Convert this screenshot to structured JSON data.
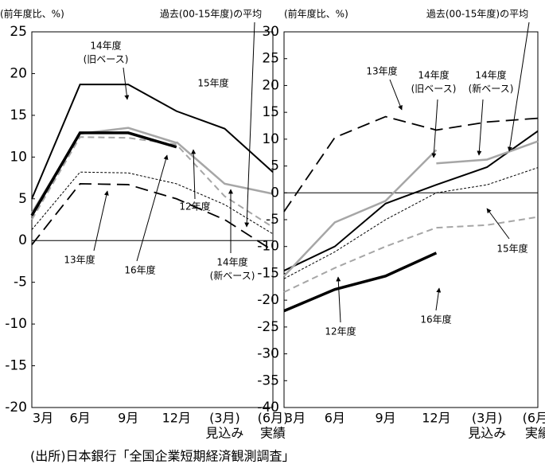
{
  "chart_data": [
    {
      "type": "line",
      "axis_label": "(前年度比、%)",
      "categories": [
        [
          "3月"
        ],
        [
          "6月"
        ],
        [
          "9月"
        ],
        [
          "12月"
        ],
        [
          "(3月)",
          "見込み"
        ],
        [
          "(6月)",
          "実績"
        ]
      ],
      "ylim": [
        -20,
        25
      ],
      "yticks": [
        -20,
        -15,
        -10,
        -5,
        0,
        5,
        10,
        15,
        20,
        25
      ],
      "series": [
        {
          "name": "15年度",
          "color": "#000000",
          "width": 2,
          "dash": "solid",
          "values": [
            5.0,
            18.7,
            18.7,
            15.5,
            13.4,
            8.2
          ]
        },
        {
          "name": "14年度(旧ベース)",
          "color": "#a6a6a6",
          "width": 2.5,
          "dash": "solid",
          "values": [
            3.3,
            12.8,
            13.5,
            11.7,
            null,
            null
          ]
        },
        {
          "name": "14年度(新ベース)",
          "color": "#a6a6a6",
          "width": 2.5,
          "dash": "solid",
          "values": [
            null,
            null,
            null,
            11.8,
            6.8,
            5.6
          ]
        },
        {
          "name": "12年度",
          "color": "#a6a6a6",
          "width": 2,
          "dash": "dash",
          "values": [
            2.5,
            12.4,
            12.3,
            11.5,
            5.3,
            1.6
          ]
        },
        {
          "name": "16年度",
          "color": "#000000",
          "width": 3.5,
          "dash": "solid",
          "values": [
            3.0,
            12.9,
            12.9,
            11.2,
            null,
            null
          ]
        },
        {
          "name": "過去(00-15年度)の平均",
          "color": "#000000",
          "width": 1,
          "dash": "dot",
          "values": [
            1.3,
            8.2,
            8.1,
            6.8,
            4.3,
            0.8
          ]
        },
        {
          "name": "13年度",
          "color": "#000000",
          "width": 1.8,
          "dash": "longdash",
          "values": [
            -0.5,
            6.8,
            6.7,
            5.0,
            2.5,
            -1.2
          ]
        }
      ],
      "annotations": [
        [
          "過去(00-15年度)の平均"
        ],
        [
          "14年度",
          "(旧ベース)"
        ],
        [
          "15年度"
        ],
        [
          "12年度"
        ],
        [
          "13年度"
        ],
        [
          "16年度"
        ],
        [
          "14年度",
          "(新ベース)"
        ]
      ]
    },
    {
      "type": "line",
      "axis_label": "(前年度比、%)",
      "categories": [
        [
          "3月"
        ],
        [
          "6月"
        ],
        [
          "9月"
        ],
        [
          "12月"
        ],
        [
          "(3月)",
          "見込み"
        ],
        [
          "(6月)",
          "実績"
        ]
      ],
      "ylim": [
        -40,
        30
      ],
      "yticks": [
        -40,
        -35,
        -30,
        -25,
        -20,
        -15,
        -10,
        -5,
        0,
        5,
        10,
        15,
        20,
        25,
        30
      ],
      "series": [
        {
          "name": "15年度",
          "color": "#000000",
          "width": 2,
          "dash": "solid",
          "values": [
            -14.5,
            -10,
            -2,
            1.5,
            4.8,
            11.5
          ]
        },
        {
          "name": "14年度(旧ベース)",
          "color": "#a6a6a6",
          "width": 2.5,
          "dash": "solid",
          "values": [
            -15.5,
            -5.5,
            -1.5,
            8,
            null,
            null
          ]
        },
        {
          "name": "14年度(新ベース)",
          "color": "#a6a6a6",
          "width": 2.5,
          "dash": "solid",
          "values": [
            null,
            null,
            null,
            5.5,
            6.2,
            9.6
          ]
        },
        {
          "name": "12年度",
          "color": "#a6a6a6",
          "width": 2,
          "dash": "dash",
          "values": [
            -18.5,
            -14,
            -10,
            -6.5,
            -6,
            -4.5
          ]
        },
        {
          "name": "16年度",
          "color": "#000000",
          "width": 3.5,
          "dash": "solid",
          "values": [
            -22,
            -18,
            -15.5,
            -11.2,
            null,
            null
          ]
        },
        {
          "name": "過去(00-15年度)の平均",
          "color": "#000000",
          "width": 1,
          "dash": "dot",
          "values": [
            -16,
            -11,
            -5,
            0,
            1.5,
            4.7
          ]
        },
        {
          "name": "13年度",
          "color": "#000000",
          "width": 1.8,
          "dash": "longdash",
          "values": [
            -3.5,
            10.3,
            14.2,
            11.7,
            13.2,
            13.9
          ]
        }
      ],
      "annotations": [
        [
          "過去(00-15年度)の平均"
        ],
        [
          "13年度"
        ],
        [
          "14年度",
          "(旧ベース)"
        ],
        [
          "14年度",
          "(新ベース)"
        ],
        [
          "15年度"
        ],
        [
          "12年度"
        ],
        [
          "16年度"
        ]
      ]
    }
  ],
  "source": "(出所)日本銀行「全国企業短期経済観測調査」"
}
